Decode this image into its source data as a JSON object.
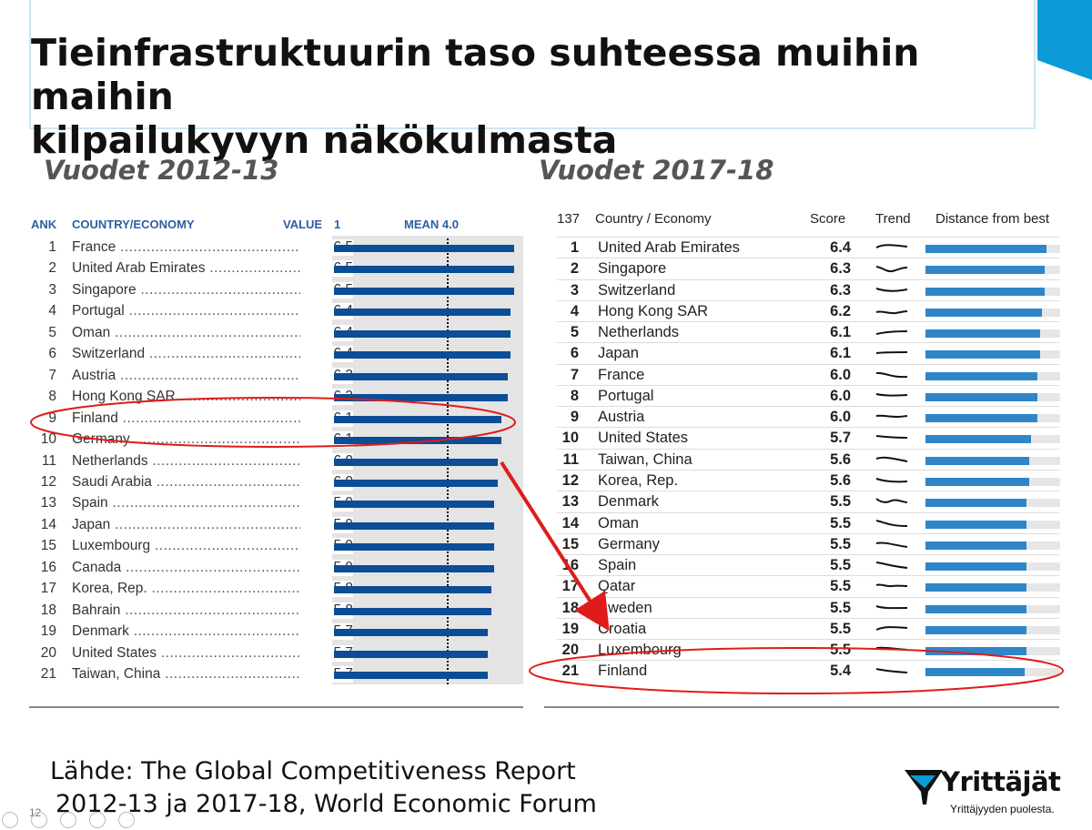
{
  "slide": {
    "title_line1": "Tieinfrastruktuurin taso suhteessa muihin maihin",
    "title_line2": "kilpailukyvyn näkökulmasta",
    "source_line1": "Lähde: The Global Competitiveness Report",
    "source_line2": "2012-13 ja 2017-18, World Economic Forum",
    "page_number": "12",
    "logo_text": "Yrittäjät",
    "logo_tagline": "Yrittäjyyden puolesta.",
    "accent_color": "#0a9ad7",
    "highlight_color": "#e01b1b"
  },
  "chart_data": [
    {
      "type": "bar",
      "heading": "Vuodet 2012-13",
      "columns": {
        "rank": "ANK",
        "country": "COUNTRY/ECONOMY",
        "value": "VALUE",
        "scale_start": "1",
        "mean": "MEAN 4.0"
      },
      "mean_value": 4.0,
      "xlim": [
        1,
        7
      ],
      "bar_color": "#0b4d96",
      "rows": [
        {
          "rank": "1",
          "country": "France",
          "value": "6.5"
        },
        {
          "rank": "2",
          "country": "United Arab Emirates",
          "value": "6.5"
        },
        {
          "rank": "3",
          "country": "Singapore",
          "value": "6.5"
        },
        {
          "rank": "4",
          "country": "Portugal",
          "value": "6.4"
        },
        {
          "rank": "5",
          "country": "Oman",
          "value": "6.4"
        },
        {
          "rank": "6",
          "country": "Switzerland",
          "value": "6.4"
        },
        {
          "rank": "7",
          "country": "Austria",
          "value": "6.3"
        },
        {
          "rank": "8",
          "country": "Hong Kong SAR",
          "value": "6.3"
        },
        {
          "rank": "9",
          "country": "Finland",
          "value": "6.1"
        },
        {
          "rank": "10",
          "country": "Germany",
          "value": "6.1"
        },
        {
          "rank": "11",
          "country": "Netherlands",
          "value": "6.0"
        },
        {
          "rank": "12",
          "country": "Saudi Arabia",
          "value": "6.0"
        },
        {
          "rank": "13",
          "country": "Spain",
          "value": "5.9"
        },
        {
          "rank": "14",
          "country": "Japan",
          "value": "5.9"
        },
        {
          "rank": "15",
          "country": "Luxembourg",
          "value": "5.9"
        },
        {
          "rank": "16",
          "country": "Canada",
          "value": "5.9"
        },
        {
          "rank": "17",
          "country": "Korea, Rep.",
          "value": "5.8"
        },
        {
          "rank": "18",
          "country": "Bahrain",
          "value": "5.8"
        },
        {
          "rank": "19",
          "country": "Denmark",
          "value": "5.7"
        },
        {
          "rank": "20",
          "country": "United States",
          "value": "5.7"
        },
        {
          "rank": "21",
          "country": "Taiwan, China",
          "value": "5.7"
        }
      ],
      "highlighted_country": "Finland"
    },
    {
      "type": "bar",
      "heading": "Vuodet 2017-18",
      "columns": {
        "rank": "137",
        "country": "Country / Economy",
        "score": "Score",
        "trend": "Trend",
        "distance": "Distance from best"
      },
      "xlim": [
        1,
        7
      ],
      "bar_color": "#2e86c9",
      "rows": [
        {
          "rank": "1",
          "country": "United Arab Emirates",
          "score": "6.4"
        },
        {
          "rank": "2",
          "country": "Singapore",
          "score": "6.3"
        },
        {
          "rank": "3",
          "country": "Switzerland",
          "score": "6.3"
        },
        {
          "rank": "4",
          "country": "Hong Kong SAR",
          "score": "6.2"
        },
        {
          "rank": "5",
          "country": "Netherlands",
          "score": "6.1"
        },
        {
          "rank": "6",
          "country": "Japan",
          "score": "6.1"
        },
        {
          "rank": "7",
          "country": "France",
          "score": "6.0"
        },
        {
          "rank": "8",
          "country": "Portugal",
          "score": "6.0"
        },
        {
          "rank": "9",
          "country": "Austria",
          "score": "6.0"
        },
        {
          "rank": "10",
          "country": "United States",
          "score": "5.7"
        },
        {
          "rank": "11",
          "country": "Taiwan, China",
          "score": "5.6"
        },
        {
          "rank": "12",
          "country": "Korea, Rep.",
          "score": "5.6"
        },
        {
          "rank": "13",
          "country": "Denmark",
          "score": "5.5"
        },
        {
          "rank": "14",
          "country": "Oman",
          "score": "5.5"
        },
        {
          "rank": "15",
          "country": "Germany",
          "score": "5.5"
        },
        {
          "rank": "16",
          "country": "Spain",
          "score": "5.5"
        },
        {
          "rank": "17",
          "country": "Qatar",
          "score": "5.5"
        },
        {
          "rank": "18",
          "country": "Sweden",
          "score": "5.5"
        },
        {
          "rank": "19",
          "country": "Croatia",
          "score": "5.5"
        },
        {
          "rank": "20",
          "country": "Luxembourg",
          "score": "5.5"
        },
        {
          "rank": "21",
          "country": "Finland",
          "score": "5.4"
        }
      ],
      "highlighted_country": "Finland"
    }
  ]
}
